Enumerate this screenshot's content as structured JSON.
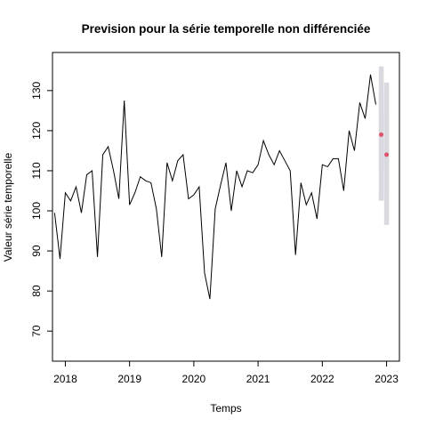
{
  "chart_data": {
    "type": "line",
    "title": "Prevision pour la série temporelle non différenciée",
    "xlabel": "Temps",
    "ylabel": "Valeur série temporelle",
    "xlim": [
      2017.8,
      2023.2
    ],
    "ylim": [
      62.5,
      139.5
    ],
    "x_ticks": [
      2018,
      2019,
      2020,
      2021,
      2022,
      2023
    ],
    "x_tick_labels": [
      "2018",
      "2019",
      "2020",
      "2021",
      "2022",
      "2023"
    ],
    "y_ticks": [
      70,
      80,
      90,
      100,
      110,
      120,
      130
    ],
    "y_tick_labels": [
      "70",
      "80",
      "90",
      "100",
      "110",
      "120",
      "130"
    ],
    "grid": false,
    "colors": {
      "series": "#000000",
      "forecast_point": "#DF536B",
      "interval": "#D9D9E0"
    },
    "series": [
      {
        "x": [
          2017.833,
          2017.917,
          2018.0,
          2018.083,
          2018.167,
          2018.25,
          2018.333,
          2018.417,
          2018.5,
          2018.583,
          2018.667,
          2018.75,
          2018.833,
          2018.917,
          2019.0,
          2019.083,
          2019.167,
          2019.25,
          2019.333,
          2019.417,
          2019.5,
          2019.583,
          2019.667,
          2019.75,
          2019.833,
          2019.917,
          2020.0,
          2020.083,
          2020.167,
          2020.25,
          2020.333,
          2020.417,
          2020.5,
          2020.583,
          2020.667,
          2020.75,
          2020.833,
          2020.917,
          2021.0,
          2021.083,
          2021.167,
          2021.25,
          2021.333,
          2021.417,
          2021.5,
          2021.583,
          2021.667,
          2021.75,
          2021.833,
          2021.917,
          2022.0,
          2022.083,
          2022.167,
          2022.25,
          2022.333,
          2022.417,
          2022.5,
          2022.583,
          2022.667,
          2022.75,
          2022.833
        ],
        "values": [
          99.5,
          88.0,
          104.5,
          102.5,
          106.0,
          99.5,
          109.0,
          110.0,
          88.5,
          114.0,
          116.0,
          110.0,
          103.0,
          127.5,
          101.5,
          104.5,
          108.5,
          107.5,
          107.0,
          100.5,
          88.5,
          112.0,
          107.5,
          112.5,
          114.0,
          103.0,
          104.0,
          106.0,
          84.5,
          78.0,
          100.5,
          106.5,
          112.0,
          100.0,
          110.0,
          106.0,
          110.0,
          109.5,
          111.5,
          117.5,
          114.0,
          111.5,
          115.0,
          112.5,
          110.0,
          89.0,
          107.0,
          101.5,
          104.5,
          98.0,
          111.5,
          111.0,
          113.0,
          113.0,
          105.0,
          120.0,
          115.0,
          127.0,
          123.0,
          134.0,
          126.5
        ]
      }
    ],
    "forecast": {
      "x": [
        2022.917,
        2023.0
      ],
      "values": [
        119.0,
        114.0
      ],
      "intervals": [
        {
          "x": 2022.917,
          "outer": [
            102.5,
            136.0
          ],
          "inner": [
            110.0,
            129.0
          ]
        },
        {
          "x": 2023.0,
          "outer": [
            96.5,
            132.0
          ],
          "inner": [
            104.0,
            124.5
          ]
        }
      ]
    }
  }
}
